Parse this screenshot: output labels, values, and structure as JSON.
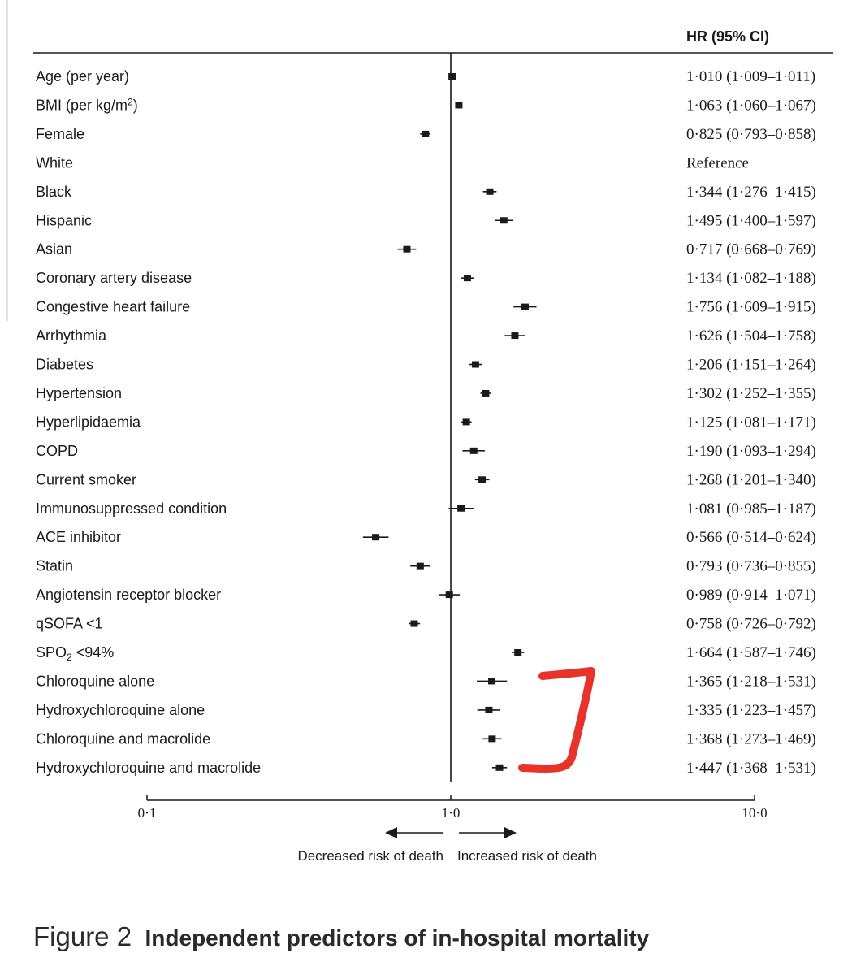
{
  "chart_data": {
    "type": "forest",
    "column_header": "HR (95% CI)",
    "x_scale": "log",
    "reference_value": 1.0,
    "x_ticks": [
      {
        "value": 0.1,
        "label": "0·1"
      },
      {
        "value": 1.0,
        "label": "1·0"
      },
      {
        "value": 10.0,
        "label": "10·0"
      }
    ],
    "direction_left": "Decreased risk of death",
    "direction_right": "Increased risk of death",
    "rows": [
      {
        "label": "Age (per year)",
        "hr": 1.01,
        "lo": 1.009,
        "hi": 1.011,
        "text": "1·010 (1·009–1·011)"
      },
      {
        "label": "BMI (per kg/m²)",
        "hr": 1.063,
        "lo": 1.06,
        "hi": 1.067,
        "text": "1·063 (1·060–1·067)"
      },
      {
        "label": "Female",
        "hr": 0.825,
        "lo": 0.793,
        "hi": 0.858,
        "text": "0·825 (0·793–0·858)"
      },
      {
        "label": "White",
        "hr": null,
        "lo": null,
        "hi": null,
        "text": "Reference"
      },
      {
        "label": "Black",
        "hr": 1.344,
        "lo": 1.276,
        "hi": 1.415,
        "text": "1·344 (1·276–1·415)"
      },
      {
        "label": "Hispanic",
        "hr": 1.495,
        "lo": 1.4,
        "hi": 1.597,
        "text": "1·495 (1·400–1·597)"
      },
      {
        "label": "Asian",
        "hr": 0.717,
        "lo": 0.668,
        "hi": 0.769,
        "text": "0·717 (0·668–0·769)"
      },
      {
        "label": "Coronary artery disease",
        "hr": 1.134,
        "lo": 1.082,
        "hi": 1.188,
        "text": "1·134 (1·082–1·188)"
      },
      {
        "label": "Congestive heart failure",
        "hr": 1.756,
        "lo": 1.609,
        "hi": 1.915,
        "text": "1·756 (1·609–1·915)"
      },
      {
        "label": "Arrhythmia",
        "hr": 1.626,
        "lo": 1.504,
        "hi": 1.758,
        "text": "1·626 (1·504–1·758)"
      },
      {
        "label": "Diabetes",
        "hr": 1.206,
        "lo": 1.151,
        "hi": 1.264,
        "text": "1·206 (1·151–1·264)"
      },
      {
        "label": "Hypertension",
        "hr": 1.302,
        "lo": 1.252,
        "hi": 1.355,
        "text": "1·302 (1·252–1·355)"
      },
      {
        "label": "Hyperlipidaemia",
        "hr": 1.125,
        "lo": 1.081,
        "hi": 1.171,
        "text": "1·125 (1·081–1·171)"
      },
      {
        "label": "COPD",
        "hr": 1.19,
        "lo": 1.093,
        "hi": 1.294,
        "text": "1·190 (1·093–1·294)"
      },
      {
        "label": "Current smoker",
        "hr": 1.268,
        "lo": 1.201,
        "hi": 1.34,
        "text": "1·268 (1·201–1·340)"
      },
      {
        "label": "Immunosuppressed condition",
        "hr": 1.081,
        "lo": 0.985,
        "hi": 1.187,
        "text": "1·081 (0·985–1·187)"
      },
      {
        "label": "ACE inhibitor",
        "hr": 0.566,
        "lo": 0.514,
        "hi": 0.624,
        "text": "0·566 (0·514–0·624)"
      },
      {
        "label": "Statin",
        "hr": 0.793,
        "lo": 0.736,
        "hi": 0.855,
        "text": "0·793 (0·736–0·855)"
      },
      {
        "label": "Angiotensin receptor blocker",
        "hr": 0.989,
        "lo": 0.914,
        "hi": 1.071,
        "text": "0·989 (0·914–1·071)"
      },
      {
        "label": "qSOFA <1",
        "hr": 0.758,
        "lo": 0.726,
        "hi": 0.792,
        "text": "0·758 (0·726–0·792)"
      },
      {
        "label": "SPO₂ <94%",
        "hr": 1.664,
        "lo": 1.587,
        "hi": 1.746,
        "text": "1·664 (1·587–1·746)"
      },
      {
        "label": "Chloroquine alone",
        "hr": 1.365,
        "lo": 1.218,
        "hi": 1.531,
        "text": "1·365 (1·218–1·531)"
      },
      {
        "label": "Hydroxychloroquine alone",
        "hr": 1.335,
        "lo": 1.223,
        "hi": 1.457,
        "text": "1·335 (1·223–1·457)"
      },
      {
        "label": "Chloroquine and macrolide",
        "hr": 1.368,
        "lo": 1.273,
        "hi": 1.469,
        "text": "1·368 (1·273–1·469)"
      },
      {
        "label": "Hydroxychloroquine and macrolide",
        "hr": 1.447,
        "lo": 1.368,
        "hi": 1.531,
        "text": "1·447 (1·368–1·531)"
      }
    ]
  },
  "caption": {
    "figure_label": "Figure 2",
    "title": "Independent predictors of in-hospital mortality"
  },
  "colors": {
    "ink": "#1a1a1a",
    "bracket_annotation": "#e8332a"
  }
}
